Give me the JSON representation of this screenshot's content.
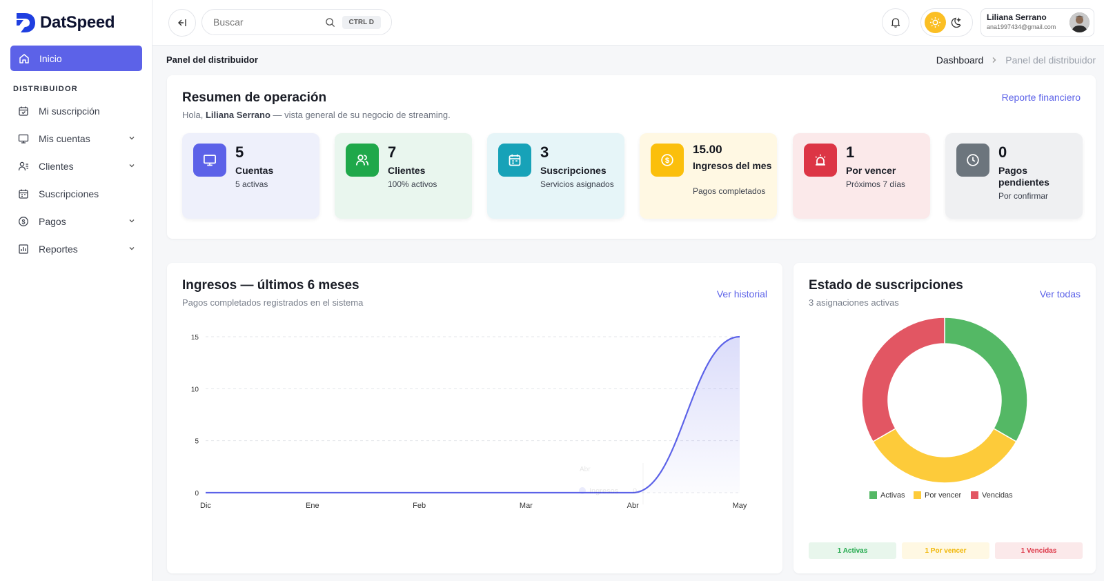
{
  "brand": {
    "name": "DatSpeed",
    "color": "#1f3fe0"
  },
  "sidebar": {
    "active": {
      "label": "Inicio",
      "icon": "home-icon"
    },
    "section": "DISTRIBUIDOR",
    "items": [
      {
        "label": "Mi suscripción",
        "icon": "calendar-check-icon",
        "chevron": false
      },
      {
        "label": "Mis cuentas",
        "icon": "monitor-icon",
        "chevron": true
      },
      {
        "label": "Clientes",
        "icon": "users-list-icon",
        "chevron": true
      },
      {
        "label": "Suscripciones",
        "icon": "calendar-icon",
        "chevron": false
      },
      {
        "label": "Pagos",
        "icon": "dollar-circle-icon",
        "chevron": true
      },
      {
        "label": "Reportes",
        "icon": "bar-chart-icon",
        "chevron": true
      }
    ]
  },
  "header": {
    "search": {
      "placeholder": "Buscar",
      "shortcut": "CTRL D"
    },
    "user": {
      "name": "Liliana Serrano",
      "email": "ana1997434@gmail.com"
    }
  },
  "page": {
    "title": "Panel del distribuidor",
    "breadcrumb": [
      "Dashboard",
      "Panel del distribuidor"
    ]
  },
  "summary": {
    "title": "Resumen de operación",
    "greeting_prefix": "Hola, ",
    "greeting_name": "Liliana Serrano",
    "greeting_suffix": " — vista general de su negocio de streaming.",
    "link": "Reporte financiero",
    "stats": [
      {
        "value": "5",
        "label": "Cuentas",
        "sub": "5 activas",
        "icon": "monitor-icon",
        "bg": "#eef0fb",
        "accent": "#5c62e8"
      },
      {
        "value": "7",
        "label": "Clientes",
        "sub": "100% activos",
        "icon": "users-icon",
        "bg": "#e9f6ee",
        "accent": "#1fa84a"
      },
      {
        "value": "3",
        "label": "Suscripciones",
        "sub": "Servicios asignados",
        "icon": "calendar-icon",
        "bg": "#e6f5f8",
        "accent": "#17a2b8"
      },
      {
        "value": "15.00",
        "label": "Ingresos del mes",
        "sub": "Pagos completados",
        "icon": "dollar-circle-icon",
        "bg": "#fff8e3",
        "accent": "#fbbf0c"
      },
      {
        "value": "1",
        "label": "Por vencer",
        "sub": "Próximos 7 días",
        "icon": "alarm-icon",
        "bg": "#fbe9ea",
        "accent": "#dc3545"
      },
      {
        "value": "0",
        "label": "Pagos pendientes",
        "sub": "Por confirmar",
        "icon": "clock-icon",
        "bg": "#eff0f2",
        "accent": "#6c757d"
      }
    ]
  },
  "revenue": {
    "title": "Ingresos — últimos 6 meses",
    "subtitle": "Pagos completados registrados en el sistema",
    "link": "Ver historial",
    "tooltip": {
      "label": "Abr",
      "series": "Ingresos",
      "value": "0"
    }
  },
  "status": {
    "title": "Estado de suscripciones",
    "subtitle": "3 asignaciones activas",
    "link": "Ver todas",
    "tags": [
      {
        "text": "1 Activas",
        "bg": "#e8f6ec",
        "color": "#1fa84a"
      },
      {
        "text": "1 Por vencer",
        "bg": "#fff8e3",
        "color": "#f0b500"
      },
      {
        "text": "1 Vencidas",
        "bg": "#fbe9ea",
        "color": "#dc3545"
      }
    ]
  },
  "chart_data": [
    {
      "type": "area",
      "title": "Ingresos — últimos 6 meses",
      "categories": [
        "Dic",
        "Ene",
        "Feb",
        "Mar",
        "Abr",
        "May"
      ],
      "series": [
        {
          "name": "Ingresos",
          "values": [
            0,
            0,
            0,
            0,
            0,
            15
          ]
        }
      ],
      "ylim": [
        0,
        15
      ],
      "yticks": [
        0,
        5,
        10,
        15
      ],
      "grid": true,
      "color": "#5c62e8"
    },
    {
      "type": "pie",
      "donut": true,
      "labels": [
        "Activas",
        "Por vencer",
        "Vencidas"
      ],
      "values": [
        1,
        1,
        1
      ],
      "colors": [
        "#54b865",
        "#fdcb3a",
        "#e25663"
      ],
      "legend": "bottom"
    }
  ]
}
